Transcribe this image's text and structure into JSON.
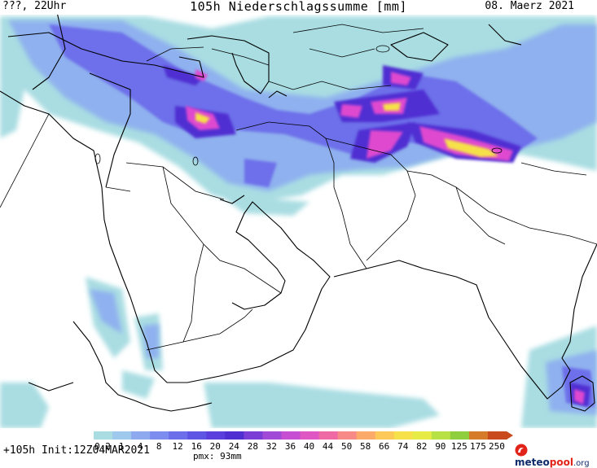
{
  "header": {
    "left": "???, 22Uhr",
    "title": "105h Niederschlagssumme [mm]",
    "date": "08. Maerz 2021"
  },
  "footer": {
    "forecast": "+105h Init:12Z04MAR2021",
    "pmx": "pmx: 93mm"
  },
  "logo": {
    "icon": "meteopool-logo-icon",
    "name_a": "meteo",
    "name_b": "pool",
    "tld": ".org"
  },
  "legend": {
    "labels": [
      "0.2",
      "1",
      "4",
      "8",
      "12",
      "16",
      "20",
      "24",
      "28",
      "32",
      "36",
      "40",
      "44",
      "50",
      "58",
      "66",
      "74",
      "82",
      "90",
      "125",
      "175",
      "250"
    ],
    "colors": [
      "#a9dde2",
      "#9ec8ec",
      "#8fa9ef",
      "#7d8cef",
      "#6d6fea",
      "#5e55e4",
      "#5a3fdc",
      "#4f2fd2",
      "#7a3ed6",
      "#a24ad8",
      "#c54ed2",
      "#df57c2",
      "#ef6aa5",
      "#f78a86",
      "#fbaa6a",
      "#fcc857",
      "#f6e14a",
      "#e6ec45",
      "#b8e145",
      "#8fcf3e",
      "#d67b2a",
      "#c94a1c"
    ]
  },
  "map_colors": {
    "light": "#a9dde2",
    "low": "#8fb1ef",
    "mid": "#6d6fea",
    "high": "#4f2fd2",
    "magenta": "#df4ad0",
    "yellow": "#f6e14a"
  }
}
